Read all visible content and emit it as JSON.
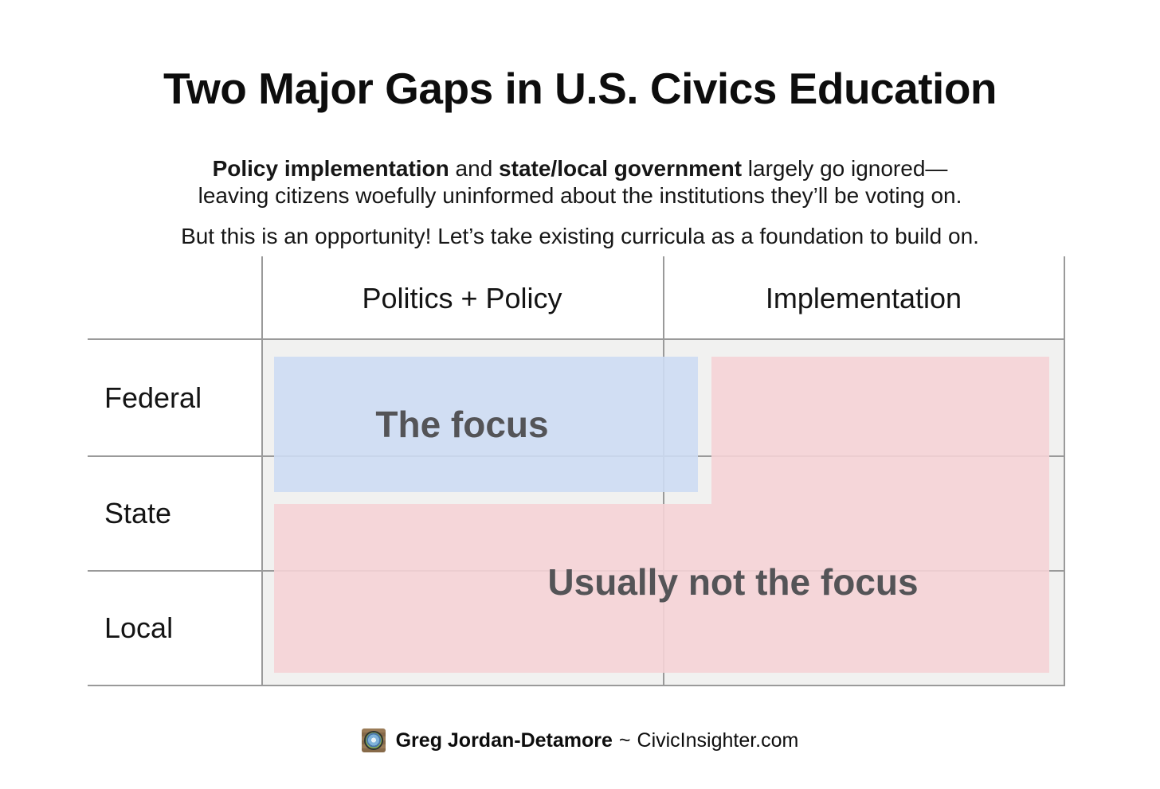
{
  "page": {
    "title": "Two Major Gaps in U.S. Civics Education",
    "intro": {
      "bold1": "Policy implementation",
      "mid": " and ",
      "bold2": "state/local government",
      "tail": " largely go ignored—",
      "line2": "leaving citizens woefully uninformed about the institutions they’ll be voting on."
    },
    "opportunity": "But this is an opportunity! Let’s take existing curricula as a foundation to build on."
  },
  "matrix": {
    "columns": [
      {
        "label": "Politics + Policy"
      },
      {
        "label": "Implementation"
      }
    ],
    "rows": [
      {
        "label": "Federal"
      },
      {
        "label": "State"
      },
      {
        "label": "Local"
      }
    ],
    "regions": {
      "focus": {
        "label": "The focus",
        "covers": [
          "Federal / Politics + Policy"
        ]
      },
      "not_focus": {
        "label": "Usually not the focus",
        "covers": [
          "Federal / Implementation",
          "State / Politics + Policy",
          "State / Implementation",
          "Local / Politics + Policy",
          "Local / Implementation"
        ]
      }
    }
  },
  "footer": {
    "logo": "civicinsighter-seal-logo",
    "author": "Greg Jordan-Detamore",
    "separator": "~",
    "site": "CivicInsighter.com"
  },
  "theme": {
    "focus_fill": "#cddbf3",
    "not_focus_fill": "#f5d3d6",
    "grid_line": "#9a9a9a",
    "matrix_bg": "#f1f1f0",
    "region_label_text": "#545457"
  }
}
